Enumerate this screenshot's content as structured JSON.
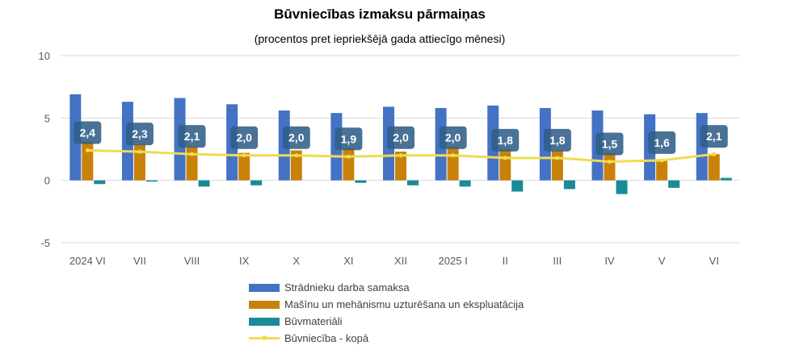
{
  "header": {
    "title": "Būvniecības izmaksu pārmaiņas",
    "subtitle": "(procentos pret iepriekšējā gada attiecīgo mēnesi)"
  },
  "legend": {
    "items": [
      {
        "label": "Strādnieku darba samaksa",
        "color": "#4472C4",
        "kind": "bar"
      },
      {
        "label": "Mašīnu un mehānismu uzturēšana un ekspluatācija",
        "color": "#C8820A",
        "kind": "bar"
      },
      {
        "label": "Būvmateriāli",
        "color": "#1B8A97",
        "kind": "bar"
      },
      {
        "label": "Būvniecība - kopā",
        "color": "#F0DC50",
        "kind": "line"
      }
    ]
  },
  "chart_data": {
    "type": "bar",
    "title": "Būvniecības izmaksu pārmaiņas",
    "subtitle": "(procentos pret iepriekšējā gada attiecīgo mēnesi)",
    "categories": [
      "2024 VI",
      "VII",
      "VIII",
      "IX",
      "X",
      "XI",
      "XII",
      "2025 I",
      "II",
      "III",
      "IV",
      "V",
      "VI"
    ],
    "ylim": [
      -5,
      10
    ],
    "yticks": [
      -5,
      0,
      5,
      10
    ],
    "ytick_labels": [
      "-5",
      "0",
      "5",
      "10"
    ],
    "grid": true,
    "legend_position": "bottom",
    "series": [
      {
        "name": "Strādnieku darba samaksa",
        "type": "bar",
        "color": "#4472C4",
        "values": [
          6.9,
          6.3,
          6.6,
          6.1,
          5.6,
          5.4,
          5.9,
          5.8,
          6.0,
          5.8,
          5.6,
          5.3,
          5.4
        ]
      },
      {
        "name": "Mašīnu un mehānismu uzturēšana un ekspluatācija",
        "type": "bar",
        "color": "#C8820A",
        "values": [
          3.1,
          2.9,
          2.7,
          2.2,
          2.4,
          2.6,
          2.3,
          2.7,
          2.5,
          2.4,
          2.2,
          1.7,
          2.1
        ]
      },
      {
        "name": "Būvmateriāli",
        "type": "bar",
        "color": "#1B8A97",
        "values": [
          -0.3,
          -0.1,
          -0.5,
          -0.4,
          0.0,
          -0.2,
          -0.4,
          -0.5,
          -0.9,
          -0.7,
          -1.1,
          -0.6,
          0.2
        ]
      },
      {
        "name": "Būvniecība - kopā",
        "type": "line",
        "color": "#F0DC50",
        "values": [
          2.4,
          2.3,
          2.1,
          2.0,
          2.0,
          1.9,
          2.0,
          2.0,
          1.8,
          1.8,
          1.5,
          1.6,
          2.1
        ],
        "labels": [
          "2,4",
          "2,3",
          "2,1",
          "2,0",
          "2,0",
          "1,9",
          "2,0",
          "2,0",
          "1,8",
          "1,8",
          "1,5",
          "1,6",
          "2,1"
        ]
      }
    ]
  }
}
